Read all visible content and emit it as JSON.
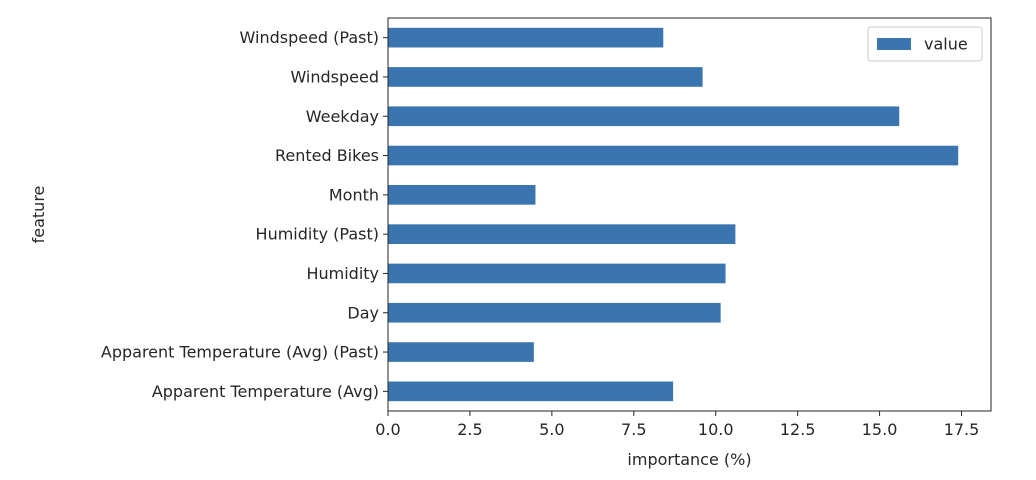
{
  "chart_data": {
    "type": "bar",
    "orientation": "horizontal",
    "categories": [
      "Windspeed (Past)",
      "Windspeed",
      "Weekday",
      "Rented Bikes",
      "Month",
      "Humidity (Past)",
      "Humidity",
      "Day",
      "Apparent Temperature (Avg) (Past)",
      "Apparent Temperature (Avg)"
    ],
    "series": [
      {
        "name": "value",
        "color": "#3a75b0",
        "values": [
          8.4,
          9.6,
          15.6,
          17.4,
          4.5,
          10.6,
          10.3,
          10.15,
          4.45,
          8.7
        ]
      }
    ],
    "xlabel": "importance (%)",
    "ylabel": "feature",
    "xlim": [
      0,
      18.4
    ],
    "xticks": [
      0.0,
      2.5,
      5.0,
      7.5,
      10.0,
      12.5,
      15.0,
      17.5
    ],
    "xtick_labels": [
      "0.0",
      "2.5",
      "5.0",
      "7.5",
      "10.0",
      "12.5",
      "15.0",
      "17.5"
    ],
    "grid": false,
    "legend_position": "top-right"
  }
}
